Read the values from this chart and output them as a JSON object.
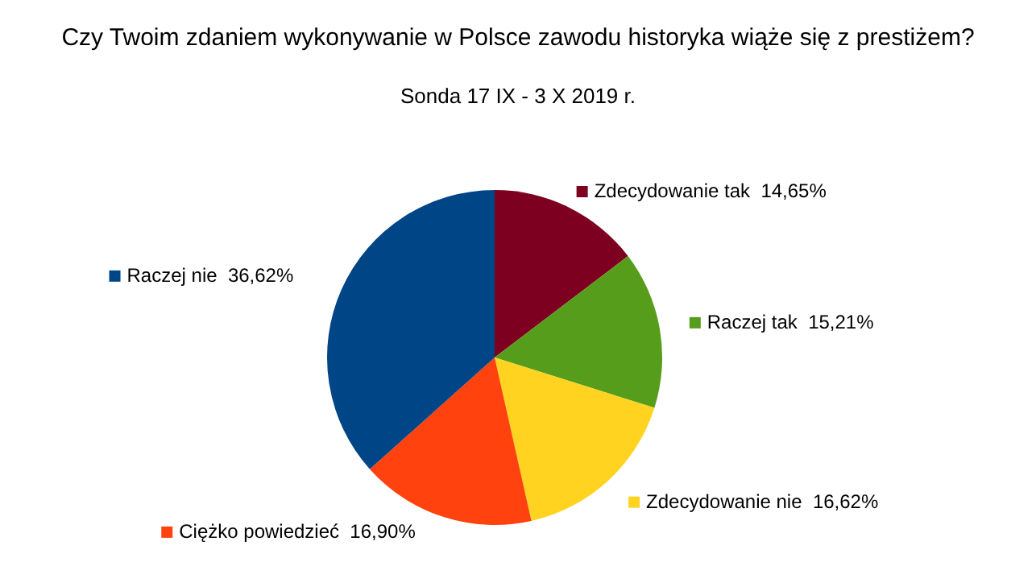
{
  "chart_data": {
    "type": "pie",
    "title": "Czy Twoim zdaniem wykonywanie w Polsce zawodu historyka wiąże się z prestiżem?",
    "subtitle": "Sonda 17 IX - 3 X 2019 r.",
    "categories": [
      "Zdecydowanie tak",
      "Raczej tak",
      "Zdecydowanie nie",
      "Ciężko powiedzieć",
      "Raczej nie"
    ],
    "values": [
      14.65,
      15.21,
      16.62,
      16.9,
      36.62
    ],
    "colors": [
      "#7e0021",
      "#579d1c",
      "#ffd320",
      "#ff420e",
      "#004586"
    ],
    "legend": "right",
    "value_labels": [
      "14,65%",
      "15,21%",
      "16,62%",
      "16,90%",
      "36,62%"
    ]
  }
}
